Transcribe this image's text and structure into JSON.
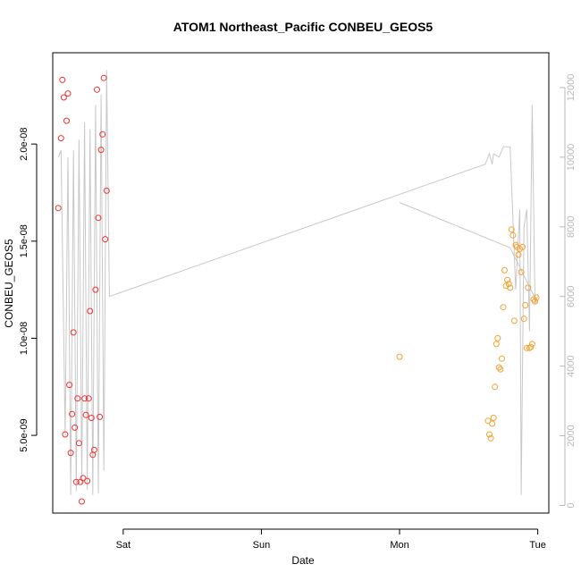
{
  "chart_data": {
    "type": "scatter",
    "title": "ATOM1 Northeast_Pacific CONBEU_GEOS5",
    "xlabel": "Date",
    "ylabel": "CONBEU_GEOS5",
    "x_ticks": [
      {
        "x": 1.0,
        "label": "Sat"
      },
      {
        "x": 2.0,
        "label": "Sun"
      },
      {
        "x": 3.0,
        "label": "Mon"
      },
      {
        "x": 4.0,
        "label": "Tue"
      }
    ],
    "y_ticks": [
      {
        "y": 5e-09,
        "label": "5.0e-09"
      },
      {
        "y": 1e-08,
        "label": "1.0e-08"
      },
      {
        "y": 1.5e-08,
        "label": "1.5e-08"
      },
      {
        "y": 2e-08,
        "label": "2.0e-08"
      }
    ],
    "y2_ticks": [
      {
        "y": 0,
        "label": "0"
      },
      {
        "y": 2000,
        "label": "2000"
      },
      {
        "y": 4000,
        "label": "4000"
      },
      {
        "y": 6000,
        "label": "6000"
      },
      {
        "y": 8000,
        "label": "8000"
      },
      {
        "y": 10000,
        "label": "10000"
      },
      {
        "y": 12000,
        "label": "12000"
      }
    ],
    "xlim": [
      0.49,
      4.08
    ],
    "ylim": [
      1e-09,
      2.47e-08
    ],
    "y2lim": [
      -220,
      13000
    ],
    "colors": {
      "series_red": "#ee3333",
      "series_orange": "#f5a033",
      "altitude_line": "#c8c8c8",
      "axis": "#000000",
      "right_axis": "#b8b8b8"
    },
    "series": [
      {
        "color": "#ee3333",
        "marker": "open-circle",
        "x": [
          0.53,
          0.55,
          0.56,
          0.57,
          0.58,
          0.59,
          0.6,
          0.61,
          0.62,
          0.63,
          0.64,
          0.65,
          0.66,
          0.67,
          0.68,
          0.69,
          0.7,
          0.71,
          0.72,
          0.73,
          0.74,
          0.75,
          0.76,
          0.77,
          0.78,
          0.79,
          0.8,
          0.81,
          0.82,
          0.83,
          0.84,
          0.85,
          0.86,
          0.87,
          0.88
        ],
        "y": [
          1.67e-08,
          2.03e-08,
          2.33e-08,
          2.24e-08,
          5.05e-09,
          2.12e-08,
          2.26e-08,
          7.6e-09,
          4.1e-09,
          6.1e-09,
          1.03e-08,
          5.4e-09,
          2.6e-09,
          6.9e-09,
          4.6e-09,
          2.6e-09,
          1.6e-09,
          2.8e-09,
          6.9e-09,
          6.05e-09,
          2.65e-09,
          6.9e-09,
          1.14e-08,
          5.9e-09,
          4e-09,
          4.25e-09,
          1.25e-08,
          2.28e-08,
          1.62e-08,
          5.95e-09,
          1.97e-08,
          2.05e-08,
          2.34e-08,
          1.51e-08,
          1.76e-08
        ]
      },
      {
        "color": "#f5a033",
        "marker": "open-circle",
        "x": [
          3.0,
          3.64,
          3.65,
          3.66,
          3.67,
          3.68,
          3.69,
          3.7,
          3.71,
          3.72,
          3.73,
          3.74,
          3.75,
          3.76,
          3.77,
          3.78,
          3.79,
          3.8,
          3.81,
          3.82,
          3.83,
          3.84,
          3.85,
          3.86,
          3.87,
          3.88,
          3.89,
          3.9,
          3.91,
          3.92,
          3.93,
          3.94,
          3.95,
          3.96,
          3.97,
          3.98,
          3.99
        ],
        "y": [
          9.05e-09,
          5.75e-09,
          5.05e-09,
          4.85e-09,
          5.6e-09,
          5.9e-09,
          7.5e-09,
          9.7e-09,
          1e-08,
          8.5e-09,
          8.4e-09,
          8.95e-09,
          1.16e-08,
          1.35e-08,
          1.27e-08,
          1.3e-08,
          1.28e-08,
          1.26e-08,
          1.56e-08,
          1.53e-08,
          1.09e-08,
          1.48e-08,
          1.47e-08,
          1.43e-08,
          1.46e-08,
          1.34e-08,
          1.47e-08,
          1.1e-08,
          1.17e-08,
          9.5e-09,
          1.26e-08,
          9.5e-09,
          9.55e-09,
          9.7e-09,
          1.2e-08,
          1.19e-08,
          1.21e-08
        ]
      }
    ],
    "altitude_line": {
      "color": "#c8c8c8",
      "x": [
        0.53,
        0.55,
        0.58,
        0.6,
        0.62,
        0.64,
        0.66,
        0.68,
        0.7,
        0.72,
        0.74,
        0.76,
        0.78,
        0.8,
        0.82,
        0.84,
        0.86,
        0.88,
        0.9,
        3.62,
        3.65,
        3.67,
        3.68,
        3.72,
        3.75,
        3.77,
        3.8,
        3.84,
        3.87,
        3.88,
        3.9,
        3.92,
        3.94,
        3.96,
        3.98,
        4.0
      ],
      "y": [
        10000,
        10200,
        2000,
        10000,
        300,
        10200,
        400,
        10500,
        600,
        11000,
        450,
        10800,
        300,
        11500,
        350,
        11800,
        1000,
        12500,
        6000,
        9800,
        10100,
        9800,
        10100,
        10000,
        10300,
        10300,
        10300,
        6200,
        8500,
        300,
        8000,
        8500,
        5000,
        11500,
        5800,
        6000
      ]
    },
    "altitude_line_2": {
      "color": "#c8c8c8",
      "x": [
        3.0,
        3.8,
        4.0
      ],
      "y": [
        8700,
        7400,
        5800
      ]
    }
  }
}
